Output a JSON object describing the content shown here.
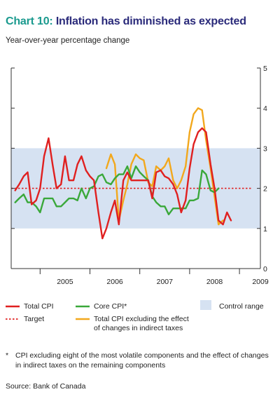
{
  "header": {
    "chart_number": "Chart 10:",
    "title": "Inflation has diminished as expected",
    "subtitle": "Year-over-year percentage change"
  },
  "colors": {
    "total_cpi": "#e02020",
    "target": "#e02020",
    "core_cpi": "#3aa83a",
    "cpi_ex_tax": "#f2a81d",
    "control_range": "#d6e2f2",
    "title_number": "#1a9a8e",
    "title_text": "#2a2a7a"
  },
  "chart_data": {
    "type": "line",
    "xlim": [
      2004.42,
      2009.42
    ],
    "ylim": [
      0,
      5
    ],
    "y_ticks": [
      0,
      1,
      2,
      3,
      4,
      5
    ],
    "y_tick_labels": [
      "0",
      "1",
      "2",
      "3",
      "4",
      "5"
    ],
    "x_tick_labels": [
      {
        "label": "2005",
        "x": 2005.0
      },
      {
        "label": "2006",
        "x": 2006.0
      },
      {
        "label": "2007",
        "x": 2007.0
      },
      {
        "label": "2008",
        "x": 2008.0
      },
      {
        "label": "2009",
        "x": 2008.92
      }
    ],
    "control_range": [
      1,
      3
    ],
    "target": 2,
    "legend": {
      "total_cpi": "Total CPI",
      "core_cpi": "Core CPI*",
      "control_range": "Control range",
      "target": "Target",
      "cpi_ex_tax_line1": "Total CPI excluding the effect",
      "cpi_ex_tax_line2": "of changes in indirect taxes"
    },
    "series": [
      {
        "name": "Total CPI",
        "values": [
          [
            2004.5,
            1.95
          ],
          [
            2004.58,
            2.1
          ],
          [
            2004.67,
            2.3
          ],
          [
            2004.75,
            2.4
          ],
          [
            2004.83,
            1.6
          ],
          [
            2004.92,
            1.7
          ],
          [
            2005.0,
            2.0
          ],
          [
            2005.08,
            2.8
          ],
          [
            2005.17,
            3.25
          ],
          [
            2005.25,
            2.6
          ],
          [
            2005.33,
            2.0
          ],
          [
            2005.42,
            2.1
          ],
          [
            2005.5,
            2.8
          ],
          [
            2005.58,
            2.2
          ],
          [
            2005.67,
            2.2
          ],
          [
            2005.75,
            2.6
          ],
          [
            2005.83,
            2.8
          ],
          [
            2005.92,
            2.45
          ],
          [
            2006.0,
            2.3
          ],
          [
            2006.08,
            2.2
          ],
          [
            2006.17,
            1.4
          ],
          [
            2006.25,
            0.75
          ],
          [
            2006.33,
            1.0
          ],
          [
            2006.42,
            1.4
          ],
          [
            2006.5,
            1.7
          ],
          [
            2006.58,
            1.1
          ],
          [
            2006.67,
            2.2
          ],
          [
            2006.75,
            2.4
          ],
          [
            2006.83,
            2.2
          ],
          [
            2006.92,
            2.2
          ],
          [
            2007.0,
            2.2
          ],
          [
            2007.08,
            2.2
          ],
          [
            2007.17,
            2.2
          ],
          [
            2007.25,
            1.75
          ],
          [
            2007.33,
            2.4
          ],
          [
            2007.42,
            2.45
          ],
          [
            2007.5,
            2.3
          ],
          [
            2007.58,
            2.25
          ],
          [
            2007.67,
            2.1
          ],
          [
            2007.75,
            1.85
          ],
          [
            2007.83,
            1.4
          ],
          [
            2007.92,
            1.7
          ],
          [
            2008.0,
            2.5
          ],
          [
            2008.08,
            3.1
          ],
          [
            2008.17,
            3.4
          ],
          [
            2008.25,
            3.5
          ],
          [
            2008.33,
            3.4
          ],
          [
            2008.42,
            2.6
          ],
          [
            2008.5,
            2.0
          ],
          [
            2008.58,
            1.2
          ],
          [
            2008.67,
            1.1
          ],
          [
            2008.75,
            1.4
          ],
          [
            2008.83,
            1.2
          ]
        ]
      },
      {
        "name": "Core CPI*",
        "values": [
          [
            2004.5,
            1.65
          ],
          [
            2004.58,
            1.75
          ],
          [
            2004.67,
            1.85
          ],
          [
            2004.75,
            1.65
          ],
          [
            2004.83,
            1.65
          ],
          [
            2004.92,
            1.55
          ],
          [
            2005.0,
            1.4
          ],
          [
            2005.08,
            1.75
          ],
          [
            2005.17,
            1.75
          ],
          [
            2005.25,
            1.75
          ],
          [
            2005.33,
            1.55
          ],
          [
            2005.42,
            1.55
          ],
          [
            2005.5,
            1.65
          ],
          [
            2005.58,
            1.75
          ],
          [
            2005.67,
            1.75
          ],
          [
            2005.75,
            1.7
          ],
          [
            2005.83,
            2.0
          ],
          [
            2005.92,
            1.75
          ],
          [
            2006.0,
            2.0
          ],
          [
            2006.08,
            2.05
          ],
          [
            2006.17,
            2.3
          ],
          [
            2006.25,
            2.35
          ],
          [
            2006.33,
            2.15
          ],
          [
            2006.42,
            2.1
          ],
          [
            2006.5,
            2.25
          ],
          [
            2006.58,
            2.35
          ],
          [
            2006.67,
            2.35
          ],
          [
            2006.75,
            2.55
          ],
          [
            2006.83,
            2.25
          ],
          [
            2006.92,
            2.55
          ],
          [
            2007.0,
            2.4
          ],
          [
            2007.08,
            2.3
          ],
          [
            2007.17,
            2.2
          ],
          [
            2007.25,
            1.8
          ],
          [
            2007.33,
            1.65
          ],
          [
            2007.42,
            1.55
          ],
          [
            2007.5,
            1.55
          ],
          [
            2007.58,
            1.35
          ],
          [
            2007.67,
            1.5
          ],
          [
            2007.75,
            1.5
          ],
          [
            2007.83,
            1.5
          ],
          [
            2007.92,
            1.5
          ],
          [
            2008.0,
            1.7
          ],
          [
            2008.08,
            1.7
          ],
          [
            2008.17,
            1.75
          ],
          [
            2008.25,
            2.45
          ],
          [
            2008.33,
            2.35
          ],
          [
            2008.42,
            1.95
          ],
          [
            2008.5,
            1.9
          ],
          [
            2008.58,
            2.0
          ]
        ]
      },
      {
        "name": "Total CPI excluding the effect of changes in indirect taxes",
        "values": [
          [
            2006.33,
            2.5
          ],
          [
            2006.42,
            2.85
          ],
          [
            2006.5,
            2.6
          ],
          [
            2006.58,
            1.2
          ],
          [
            2006.67,
            1.7
          ],
          [
            2006.75,
            2.1
          ],
          [
            2006.83,
            2.6
          ],
          [
            2006.92,
            2.85
          ],
          [
            2007.0,
            2.75
          ],
          [
            2007.08,
            2.7
          ],
          [
            2007.17,
            2.15
          ],
          [
            2007.25,
            2.05
          ],
          [
            2007.33,
            2.55
          ],
          [
            2007.42,
            2.45
          ],
          [
            2007.5,
            2.55
          ],
          [
            2007.58,
            2.75
          ],
          [
            2007.67,
            2.2
          ],
          [
            2007.75,
            2.0
          ],
          [
            2007.83,
            2.2
          ],
          [
            2007.92,
            2.55
          ],
          [
            2008.0,
            3.4
          ],
          [
            2008.08,
            3.85
          ],
          [
            2008.17,
            4.0
          ],
          [
            2008.25,
            3.95
          ],
          [
            2008.33,
            3.2
          ],
          [
            2008.42,
            2.5
          ],
          [
            2008.5,
            1.8
          ],
          [
            2008.58,
            1.1
          ],
          [
            2008.67,
            1.2
          ]
        ]
      }
    ]
  },
  "footnote": {
    "marker": "*",
    "text": "CPI excluding eight of the most volatile components and the effect of changes in indirect taxes on the remaining components"
  },
  "source": "Source: Bank of Canada"
}
